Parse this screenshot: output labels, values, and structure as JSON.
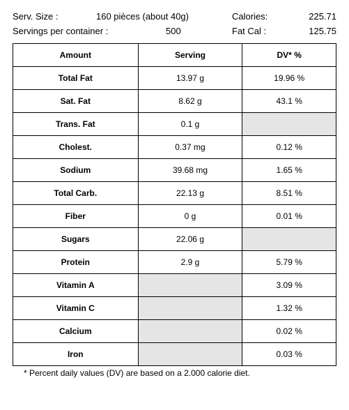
{
  "header": {
    "serv_size_label": "Serv. Size :",
    "serv_size_value": "160 pièces (about 40g)",
    "servings_label": "Servings per container :",
    "servings_value": "500",
    "calories_label": "Calories:",
    "calories_value": "225.71",
    "fatcal_label": "Fat Cal :",
    "fatcal_value": "125.75"
  },
  "table": {
    "columns": [
      "Amount",
      "Serving",
      "DV* %"
    ],
    "rows": [
      {
        "label": "Total Fat",
        "serving": "13.97 g",
        "dv": "19.96 %",
        "serving_blank": false,
        "dv_blank": false
      },
      {
        "label": "Sat. Fat",
        "serving": "8.62 g",
        "dv": "43.1 %",
        "serving_blank": false,
        "dv_blank": false
      },
      {
        "label": "Trans. Fat",
        "serving": "0.1 g",
        "dv": "",
        "serving_blank": false,
        "dv_blank": true
      },
      {
        "label": "Cholest.",
        "serving": "0.37 mg",
        "dv": "0.12 %",
        "serving_blank": false,
        "dv_blank": false
      },
      {
        "label": "Sodium",
        "serving": "39.68 mg",
        "dv": "1.65 %",
        "serving_blank": false,
        "dv_blank": false
      },
      {
        "label": "Total Carb.",
        "serving": "22.13 g",
        "dv": "8.51 %",
        "serving_blank": false,
        "dv_blank": false
      },
      {
        "label": "Fiber",
        "serving": "0 g",
        "dv": "0.01 %",
        "serving_blank": false,
        "dv_blank": false
      },
      {
        "label": "Sugars",
        "serving": "22.06 g",
        "dv": "",
        "serving_blank": false,
        "dv_blank": true
      },
      {
        "label": "Protein",
        "serving": "2.9 g",
        "dv": "5.79 %",
        "serving_blank": false,
        "dv_blank": false
      },
      {
        "label": "Vitamin A",
        "serving": "",
        "dv": "3.09 %",
        "serving_blank": true,
        "dv_blank": false
      },
      {
        "label": "Vitamin C",
        "serving": "",
        "dv": "1.32 %",
        "serving_blank": true,
        "dv_blank": false
      },
      {
        "label": "Calcium",
        "serving": "",
        "dv": "0.02 %",
        "serving_blank": true,
        "dv_blank": false
      },
      {
        "label": "Iron",
        "serving": "",
        "dv": "0.03 %",
        "serving_blank": true,
        "dv_blank": false
      }
    ]
  },
  "footnote": "* Percent daily values (DV) are based on a 2.000 calorie diet."
}
